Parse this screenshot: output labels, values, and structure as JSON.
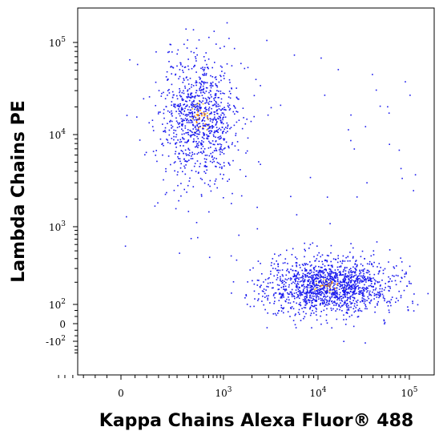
{
  "chart_data": {
    "type": "scatter",
    "title": "",
    "xlabel": "Kappa Chains Alexa Fluor® 488",
    "ylabel": "Lambda Chains PE",
    "x_scale": "biexponential",
    "y_scale": "biexponential",
    "xlim": [
      -300,
      150000
    ],
    "ylim": [
      -300,
      150000
    ],
    "x_ticks": [
      {
        "value": 0,
        "base": "0",
        "exp": ""
      },
      {
        "value": 1000,
        "base": "10",
        "exp": "3"
      },
      {
        "value": 10000,
        "base": "10",
        "exp": "4"
      },
      {
        "value": 100000,
        "base": "10",
        "exp": "5"
      }
    ],
    "y_ticks": [
      {
        "value": 100000,
        "base": "10",
        "exp": "5"
      },
      {
        "value": 10000,
        "base": "10",
        "exp": "4"
      },
      {
        "value": 1000,
        "base": "10",
        "exp": "3"
      },
      {
        "value": 100,
        "base": "10",
        "exp": "2"
      },
      {
        "value": 0,
        "base": "0",
        "exp": ""
      },
      {
        "value": -100,
        "base": "-10",
        "exp": "2"
      }
    ],
    "grid": false,
    "colors": {
      "low_density": "#1a1aee",
      "high_density": "#ff8c00",
      "mid_density": "#e8c020"
    },
    "populations": [
      {
        "center": [
          450,
          15000
        ],
        "count": 1000
      },
      {
        "center": [
          13000,
          180
        ],
        "count": 1500
      }
    ]
  }
}
